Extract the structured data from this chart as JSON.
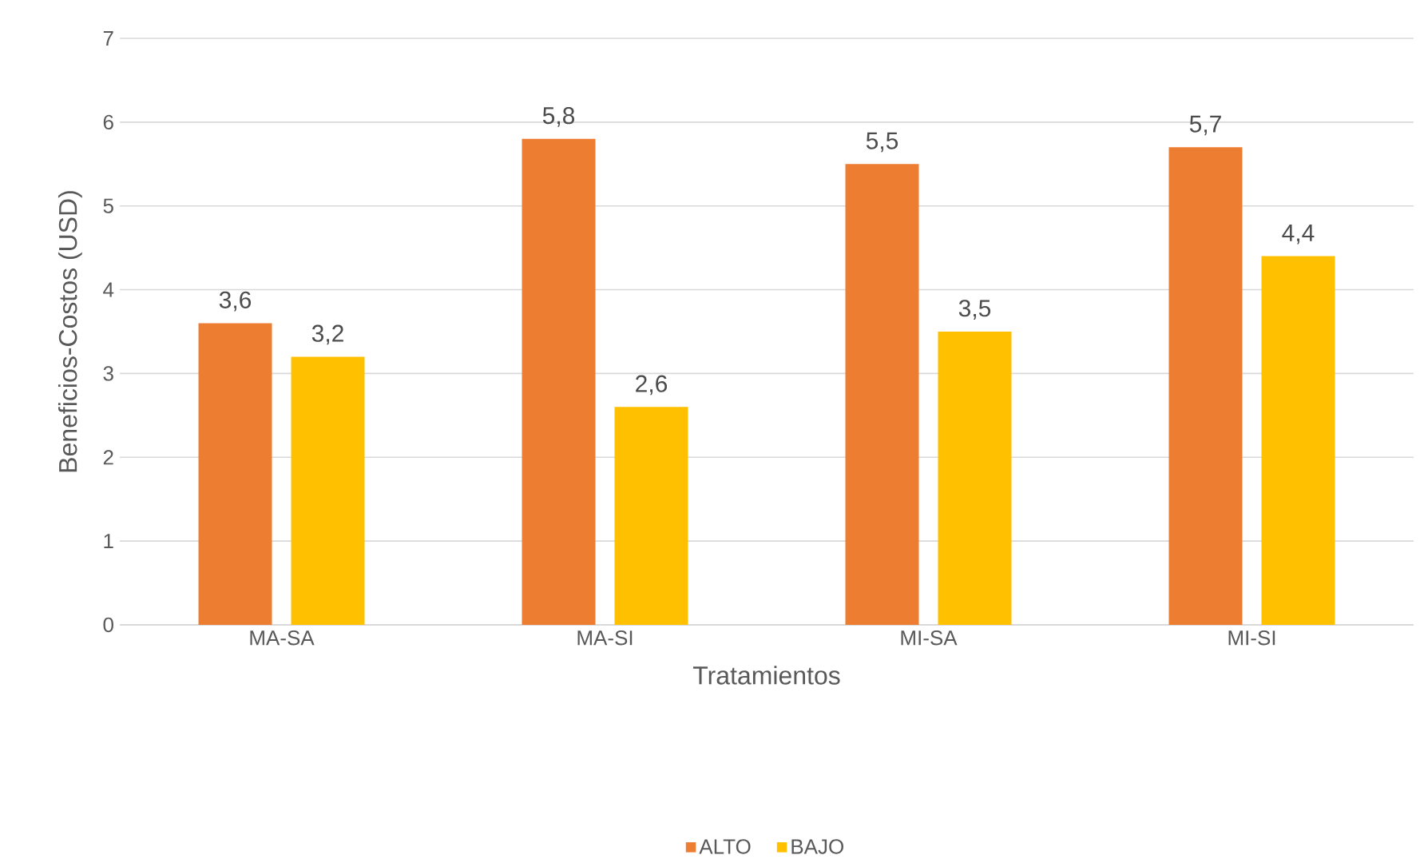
{
  "chart_data": {
    "type": "bar",
    "xlabel": "Tratamientos",
    "ylabel": "Beneficios-Costos (USD)",
    "categories": [
      "MA-SA",
      "MA-SI",
      "MI-SA",
      "MI-SI"
    ],
    "series": [
      {
        "name": "ALTO",
        "color": "#ed7d31",
        "values": [
          3.6,
          5.8,
          5.5,
          5.7
        ],
        "value_labels": [
          "3,6",
          "5,8",
          "5,5",
          "5,7"
        ]
      },
      {
        "name": "BAJO",
        "color": "#ffc000",
        "values": [
          3.2,
          2.6,
          3.5,
          4.4
        ],
        "value_labels": [
          "3,2",
          "2,6",
          "3,5",
          "4,4"
        ]
      }
    ],
    "ylim": [
      0,
      7
    ],
    "yticks": [
      0,
      1,
      2,
      3,
      4,
      5,
      6,
      7
    ],
    "grid": "y",
    "legend": "bottom"
  }
}
